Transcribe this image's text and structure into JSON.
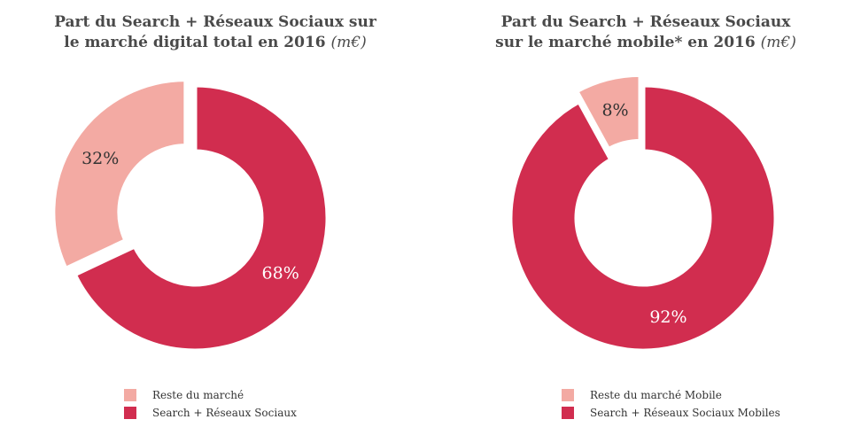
{
  "colors": {
    "light": "#f3aaa3",
    "dark": "#d12d4f"
  },
  "chart_data": [
    {
      "type": "pie",
      "title_main": "Part du Search + Réseaux Sociaux sur",
      "title_line2": "le marché digital total en 2016",
      "title_unit": "(m€)",
      "categories": [
        "Reste du marché",
        "Search + Réseaux Sociaux"
      ],
      "values": [
        32,
        68
      ],
      "labels": [
        "32%",
        "68%"
      ],
      "legend_position": "bottom"
    },
    {
      "type": "pie",
      "title_main": "Part du Search + Réseaux Sociaux",
      "title_line2": "sur le marché mobile* en 2016",
      "title_unit": "(m€)",
      "categories": [
        "Reste du marché Mobile",
        "Search + Réseaux Sociaux Mobiles"
      ],
      "values": [
        8,
        92
      ],
      "labels": [
        "8%",
        "92%"
      ],
      "legend_position": "bottom"
    }
  ]
}
